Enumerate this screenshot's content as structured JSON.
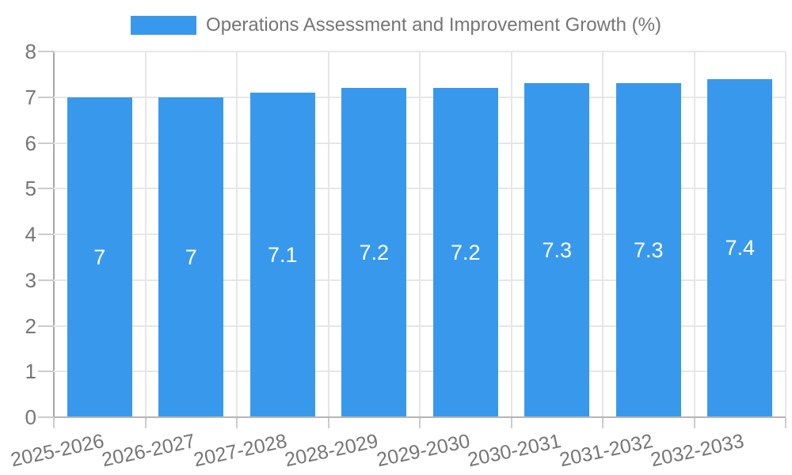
{
  "legend": {
    "label": "Operations Assessment and Improvement Growth (%)",
    "position": "top"
  },
  "chart_data": {
    "type": "bar",
    "title": "Operations Assessment and Improvement Growth (%)",
    "categories": [
      "2025-2026",
      "2026-2027",
      "2027-2028",
      "2028-2029",
      "2029-2030",
      "2030-2031",
      "2031-2032",
      "2032-2033"
    ],
    "values": [
      7,
      7,
      7.1,
      7.2,
      7.2,
      7.3,
      7.3,
      7.4
    ],
    "bar_labels": [
      "7",
      "7",
      "7.1",
      "7.2",
      "7.2",
      "7.3",
      "7.3",
      "7.4"
    ],
    "series_name": "Operations Assessment and Improvement Growth (%)",
    "xlabel": "",
    "ylabel": "",
    "ylim": [
      0,
      8
    ],
    "yticks": [
      0,
      1,
      2,
      3,
      4,
      5,
      6,
      7,
      8
    ],
    "grid": true,
    "legend_position": "top",
    "bar_color": "#3899ec",
    "value_label_color": "#ffffff",
    "axis_text_color": "#757575",
    "gridline_color": "#e6e6e6"
  }
}
